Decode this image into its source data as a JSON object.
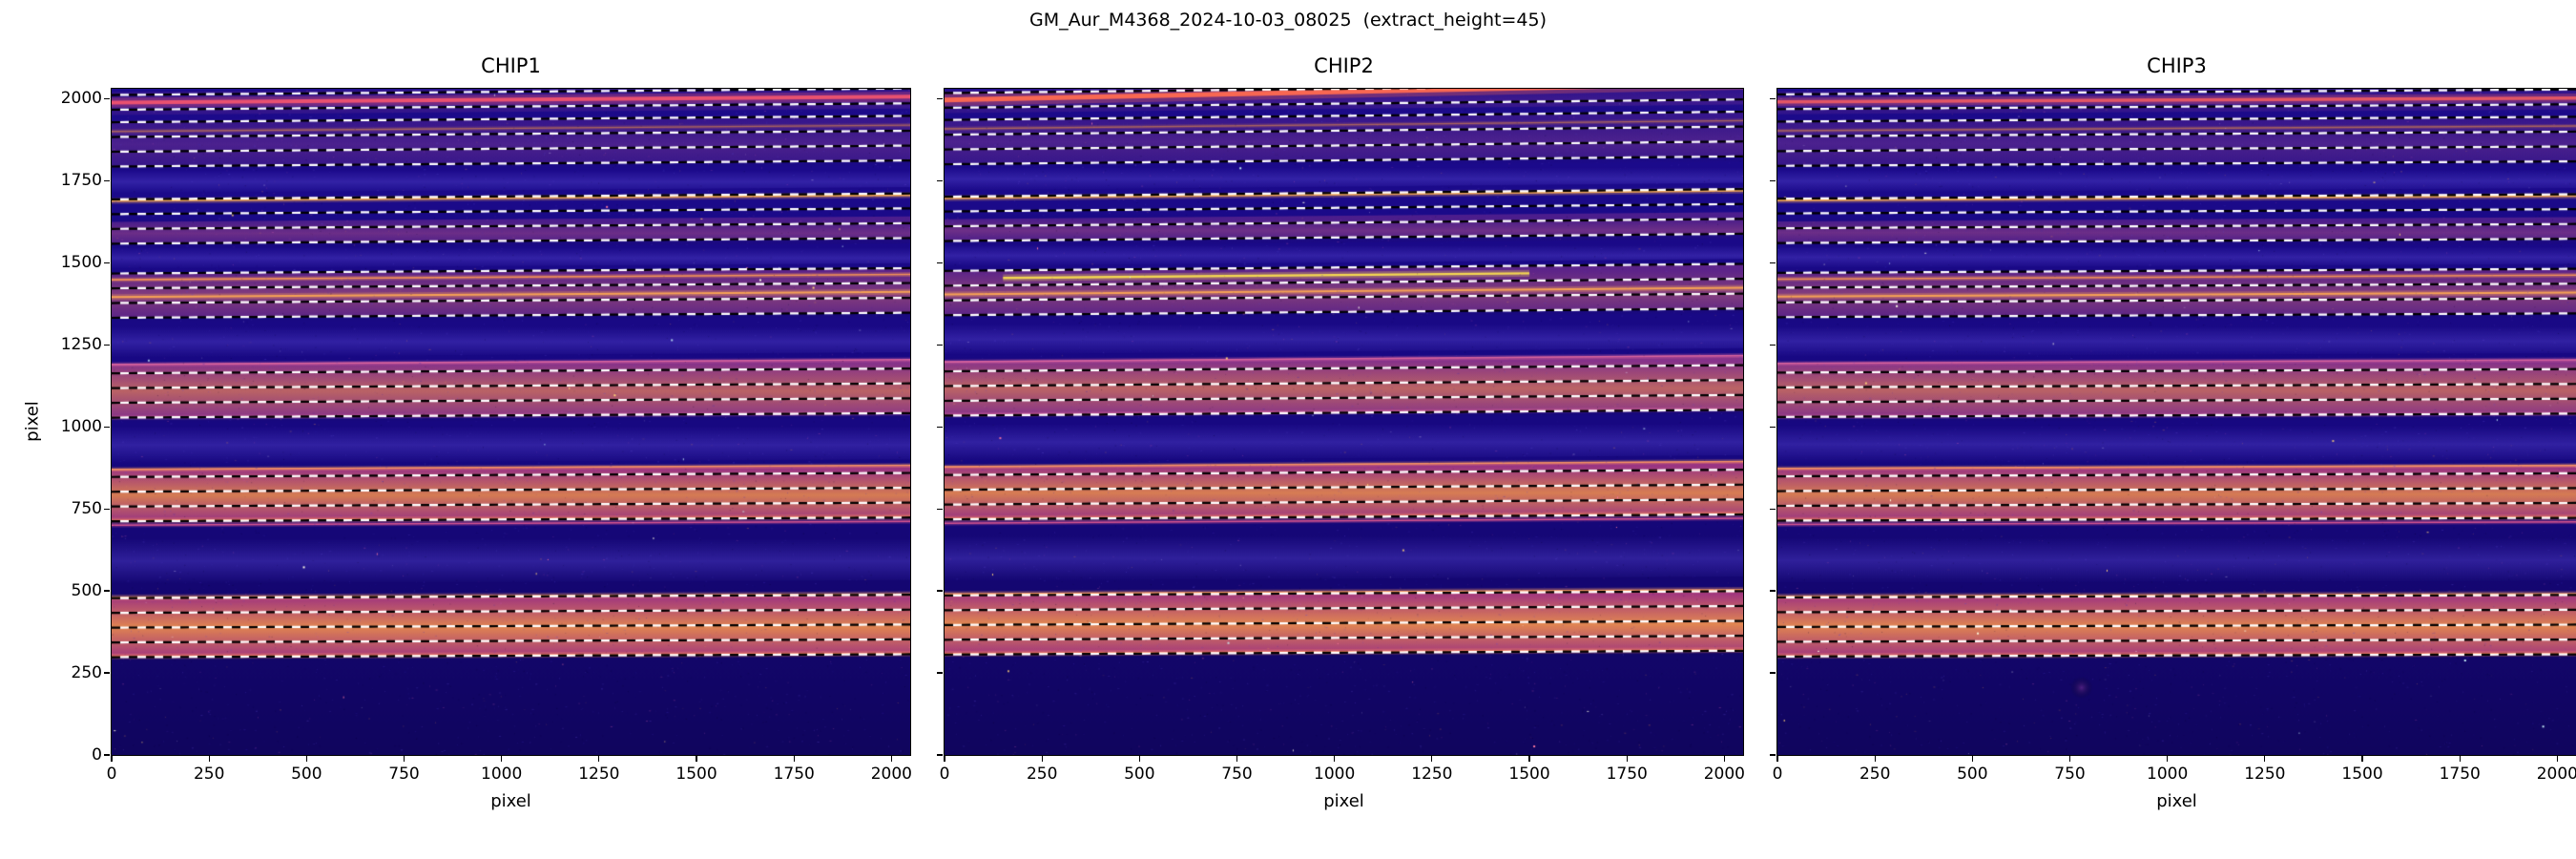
{
  "figure": {
    "title": "GM_Aur_M4368_2024-10-03_08025  (extract_height=45)"
  },
  "chart_data": {
    "type": "heatmap",
    "title": "GM_Aur_M4368_2024-10-03_08025  (extract_height=45)",
    "extract_height": 45,
    "xlabel": "pixel",
    "ylabel": "pixel",
    "xlim": [
      0,
      2048
    ],
    "ylim": [
      0,
      2030
    ],
    "x_ticks": [
      0,
      250,
      500,
      750,
      1000,
      1250,
      1500,
      1750,
      2000
    ],
    "y_ticks": [
      0,
      250,
      500,
      750,
      1000,
      1250,
      1500,
      1750,
      2000
    ],
    "colormap": "plasma-like",
    "legend": "none",
    "grid": false,
    "colors": {
      "background_top": "#1d0b8e",
      "background_mid": "#170880",
      "background_bottom": "#10055e",
      "streak": "#4b3ac2",
      "dash_white": "#ffffff",
      "dash_black": "#000000"
    },
    "chips": [
      {
        "title": "CHIP1",
        "seed": 11,
        "tilt_base": 20,
        "top_line": {
          "y": 1988,
          "tilt": 18,
          "color": "#f0536e",
          "width": 4
        },
        "bands": [
          {
            "y0": 298,
            "y1": 482,
            "edge": "#a83880",
            "core": "#e88a50",
            "alpha": 0.95
          },
          {
            "y0": 712,
            "y1": 872,
            "edge": "#a53884",
            "core": "#e28450",
            "alpha": 0.92
          },
          {
            "y0": 1026,
            "y1": 1192,
            "edge": "#9a3a8c",
            "core": "#d07060",
            "alpha": 0.85
          },
          {
            "y0": 1332,
            "y1": 1468,
            "edge": "#86348e",
            "core": "#b85878",
            "alpha": 0.62
          },
          {
            "y0": 1556,
            "y1": 1624,
            "edge": "#7a3092",
            "core": "#a84a86",
            "alpha": 0.52
          },
          {
            "y0": 1790,
            "y1": 1932,
            "edge": "#642a90",
            "core": "#8a4092",
            "alpha": 0.38
          },
          {
            "y0": 1950,
            "y1": 2020,
            "edge": "#5c2890",
            "core": "#7c3694",
            "alpha": 0.3
          }
        ],
        "bright_lines": [
          {
            "y": 300,
            "color": "#ff8a5c",
            "width": 2
          },
          {
            "y": 480,
            "color": "#ffa062",
            "width": 2
          },
          {
            "y": 700,
            "color": "#e85b90",
            "width": 1.5
          },
          {
            "y": 714,
            "color": "#ff8a58",
            "width": 2
          },
          {
            "y": 870,
            "color": "#ff9a60",
            "width": 1.6
          },
          {
            "y": 1028,
            "color": "#e068a0",
            "width": 1.6
          },
          {
            "y": 1190,
            "color": "#e068a0",
            "width": 1.6
          },
          {
            "y": 1395,
            "color": "#ffaa52",
            "width": 2
          },
          {
            "y": 1448,
            "color": "#ff9a52",
            "width": 1.6
          },
          {
            "y": 1688,
            "color": "#ffb052",
            "width": 2
          },
          {
            "y": 1900,
            "color": "#cc7a50",
            "width": 1.4,
            "alpha": 0.7
          }
        ],
        "extraction_lines": [
          298,
          343,
          388,
          433,
          478,
          712,
          757,
          802,
          847,
          1028,
          1073,
          1118,
          1163,
          1332,
          1377,
          1422,
          1467,
          1558,
          1603,
          1648,
          1693,
          1793,
          1838,
          1883,
          1928,
          1966,
          2011
        ],
        "streaks": [
          [
            522,
            660
          ],
          [
            888,
            1002
          ],
          [
            1212,
            1306
          ],
          [
            1482,
            1546
          ],
          [
            1712,
            1782
          ]
        ]
      },
      {
        "title": "CHIP2",
        "seed": 22,
        "tilt_base": 26,
        "top_line": {
          "y": 1996,
          "tilt": 50,
          "color": "#ff6a50",
          "width": 5
        },
        "bands": [
          {
            "y0": 306,
            "y1": 492,
            "edge": "#a83880",
            "core": "#ea8c50",
            "alpha": 0.95
          },
          {
            "y0": 718,
            "y1": 880,
            "edge": "#a53884",
            "core": "#e48650",
            "alpha": 0.92
          },
          {
            "y0": 1034,
            "y1": 1200,
            "edge": "#9a3a8c",
            "core": "#d27260",
            "alpha": 0.85
          },
          {
            "y0": 1340,
            "y1": 1476,
            "edge": "#86348e",
            "core": "#ba5a78",
            "alpha": 0.62
          },
          {
            "y0": 1564,
            "y1": 1632,
            "edge": "#7a3092",
            "core": "#aa4c86",
            "alpha": 0.52
          },
          {
            "y0": 1798,
            "y1": 1938,
            "edge": "#642a90",
            "core": "#8c4292",
            "alpha": 0.38
          },
          {
            "y0": 1956,
            "y1": 2026,
            "edge": "#5c2890",
            "core": "#7c3694",
            "alpha": 0.3
          }
        ],
        "bright_lines": [
          {
            "y": 308,
            "color": "#ff8a5c",
            "width": 2
          },
          {
            "y": 490,
            "color": "#ffa062",
            "width": 2
          },
          {
            "y": 706,
            "color": "#e85b90",
            "width": 1.5
          },
          {
            "y": 720,
            "color": "#ff8a58",
            "width": 2
          },
          {
            "y": 878,
            "color": "#ff9a60",
            "width": 1.6
          },
          {
            "y": 1036,
            "color": "#e068a0",
            "width": 1.6
          },
          {
            "y": 1198,
            "color": "#e068a0",
            "width": 1.6
          },
          {
            "y": 1403,
            "color": "#ffaa52",
            "width": 2
          },
          {
            "y": 1452,
            "color": "#ffe44e",
            "width": 2.4,
            "x0": 150,
            "x1": 1500
          },
          {
            "y": 1696,
            "color": "#ffb052",
            "width": 2
          },
          {
            "y": 1908,
            "color": "#cc7a50",
            "width": 1.4,
            "alpha": 0.7
          }
        ],
        "extraction_lines": [
          306,
          351,
          396,
          441,
          486,
          718,
          763,
          808,
          853,
          1034,
          1079,
          1124,
          1169,
          1340,
          1385,
          1430,
          1475,
          1566,
          1611,
          1656,
          1701,
          1800,
          1845,
          1890,
          1935,
          1972,
          2017
        ],
        "streaks": [
          [
            530,
            668
          ],
          [
            896,
            1010
          ],
          [
            1220,
            1314
          ],
          [
            1490,
            1554
          ],
          [
            1720,
            1790
          ]
        ]
      },
      {
        "title": "CHIP3",
        "seed": 33,
        "tilt_base": 15,
        "top_line": {
          "y": 1990,
          "tilt": 12,
          "color": "#ea5862",
          "width": 3.5
        },
        "blob": {
          "x": 780,
          "y": 205,
          "r": 18,
          "color": "#8c3aa0",
          "alpha": 0.5
        },
        "bands": [
          {
            "y0": 300,
            "y1": 485,
            "edge": "#a83880",
            "core": "#e88a50",
            "alpha": 0.95
          },
          {
            "y0": 714,
            "y1": 875,
            "edge": "#a53884",
            "core": "#e28450",
            "alpha": 0.92
          },
          {
            "y0": 1028,
            "y1": 1195,
            "edge": "#9a3a8c",
            "core": "#d07060",
            "alpha": 0.85
          },
          {
            "y0": 1334,
            "y1": 1470,
            "edge": "#86348e",
            "core": "#b85878",
            "alpha": 0.62
          },
          {
            "y0": 1558,
            "y1": 1626,
            "edge": "#7a3092",
            "core": "#a84a86",
            "alpha": 0.52
          },
          {
            "y0": 1792,
            "y1": 1934,
            "edge": "#642a90",
            "core": "#8a4092",
            "alpha": 0.38
          },
          {
            "y0": 1952,
            "y1": 2022,
            "edge": "#5c2890",
            "core": "#7c3694",
            "alpha": 0.3
          }
        ],
        "bright_lines": [
          {
            "y": 302,
            "color": "#ff8a5c",
            "width": 2
          },
          {
            "y": 483,
            "color": "#ffa062",
            "width": 2
          },
          {
            "y": 702,
            "color": "#e85b90",
            "width": 1.5
          },
          {
            "y": 716,
            "color": "#ff8a58",
            "width": 2
          },
          {
            "y": 873,
            "color": "#ff9a60",
            "width": 1.6
          },
          {
            "y": 1030,
            "color": "#e068a0",
            "width": 1.6
          },
          {
            "y": 1193,
            "color": "#e068a0",
            "width": 1.6
          },
          {
            "y": 1397,
            "color": "#ffaa52",
            "width": 2
          },
          {
            "y": 1450,
            "color": "#ff9a52",
            "width": 1.6
          },
          {
            "y": 1690,
            "color": "#ffb052",
            "width": 2
          },
          {
            "y": 1902,
            "color": "#cc7a50",
            "width": 1.4,
            "alpha": 0.7
          }
        ],
        "extraction_lines": [
          300,
          345,
          390,
          435,
          480,
          714,
          759,
          804,
          849,
          1030,
          1075,
          1120,
          1165,
          1334,
          1379,
          1424,
          1469,
          1560,
          1605,
          1650,
          1695,
          1795,
          1840,
          1885,
          1930,
          1968,
          2013
        ],
        "streaks": [
          [
            524,
            662
          ],
          [
            890,
            1004
          ],
          [
            1214,
            1308
          ],
          [
            1484,
            1548
          ],
          [
            1714,
            1784
          ]
        ]
      }
    ]
  }
}
